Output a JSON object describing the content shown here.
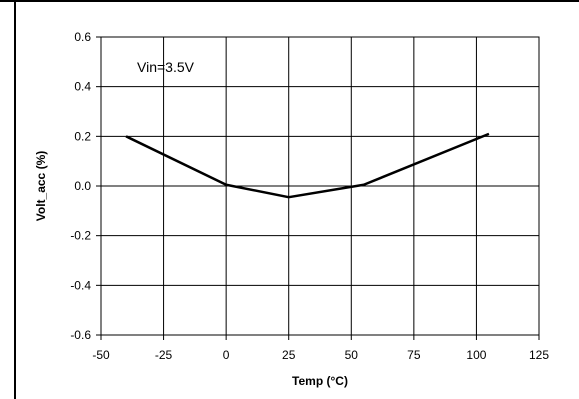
{
  "chart_data": {
    "type": "line",
    "title": "",
    "xlabel": "Temp (°C)",
    "ylabel": "Volt_acc (%)",
    "xlim": [
      -50,
      125
    ],
    "ylim": [
      -0.6,
      0.6
    ],
    "xticks": [
      "-50",
      "-25",
      "0",
      "25",
      "50",
      "75",
      "100",
      "125"
    ],
    "xtick_values": [
      -50,
      -25,
      0,
      25,
      50,
      75,
      100,
      125
    ],
    "yticks": [
      "0.6",
      "0.4",
      "0.2",
      "0.0",
      "-0.2",
      "-0.4",
      "-0.6"
    ],
    "ytick_values": [
      0.6,
      0.4,
      0.2,
      0.0,
      -0.2,
      -0.4,
      -0.6
    ],
    "grid": true,
    "legend": "none",
    "annotation": "Vin=3.5V",
    "series": [
      {
        "x": [
          -40,
          0,
          25,
          55,
          105
        ],
        "y": [
          0.2,
          0.005,
          -0.045,
          0.005,
          0.21
        ],
        "color": "#000000"
      }
    ]
  }
}
